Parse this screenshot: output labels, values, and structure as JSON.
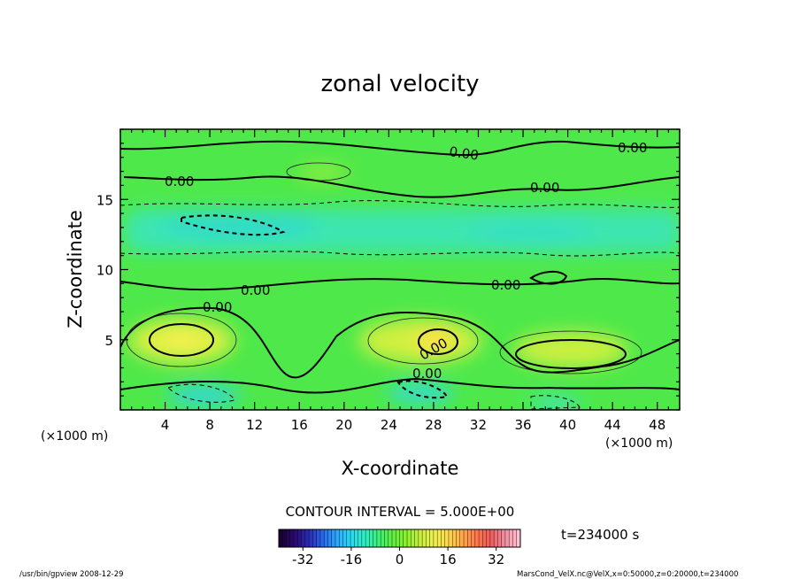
{
  "chart_data": {
    "type": "contour",
    "title": "zonal velocity",
    "xlabel": "X-coordinate",
    "ylabel": "Z-coordinate",
    "x_unit_left": "(×1000 m)",
    "x_unit_right": "(×1000 m)",
    "xlim": [
      0,
      50
    ],
    "ylim": [
      0,
      20
    ],
    "x_ticks": [
      4,
      8,
      12,
      16,
      20,
      24,
      28,
      32,
      36,
      40,
      44,
      48
    ],
    "y_ticks": [
      5,
      10,
      15
    ],
    "contour_interval_text": "CONTOUR INTERVAL = 5.000E+00",
    "contour_label": "0.00",
    "time_text": "t=234000 s",
    "colorbar": {
      "min": -40,
      "max": 40,
      "ticks": [
        -32,
        -16,
        0,
        16,
        32
      ],
      "colors": [
        "#1a0033",
        "#2a0a6e",
        "#2a2ab8",
        "#2a66e8",
        "#2aa8ff",
        "#2ad8f0",
        "#2af0c8",
        "#3cf078",
        "#5ef03c",
        "#8cf030",
        "#c8f03c",
        "#eef050",
        "#ffd84a",
        "#ffa84a",
        "#ff784a",
        "#f05a5a",
        "#f08ca0",
        "#ffc0d0"
      ]
    },
    "field_features": [
      {
        "kind": "positive-max",
        "x": 6,
        "z": 5.2,
        "approx_value": 12
      },
      {
        "kind": "positive-max",
        "x": 28,
        "z": 5.0,
        "approx_value": 15
      },
      {
        "kind": "positive-max",
        "x": 42,
        "z": 4.0,
        "approx_value": 10
      },
      {
        "kind": "negative-min",
        "x": 10,
        "z": 13.5,
        "approx_value": -8
      },
      {
        "kind": "negative-min",
        "x": 8,
        "z": 1.2,
        "approx_value": -10
      },
      {
        "kind": "negative-min",
        "x": 27,
        "z": 1.5,
        "approx_value": -8
      },
      {
        "kind": "negative-min",
        "x": 38,
        "z": 0.5,
        "approx_value": -8
      }
    ]
  },
  "footer": {
    "left": "/usr/bin/gpview   2008-12-29",
    "right": "MarsCond_VelX.nc@VelX,x=0:50000,z=0:20000,t=234000"
  }
}
